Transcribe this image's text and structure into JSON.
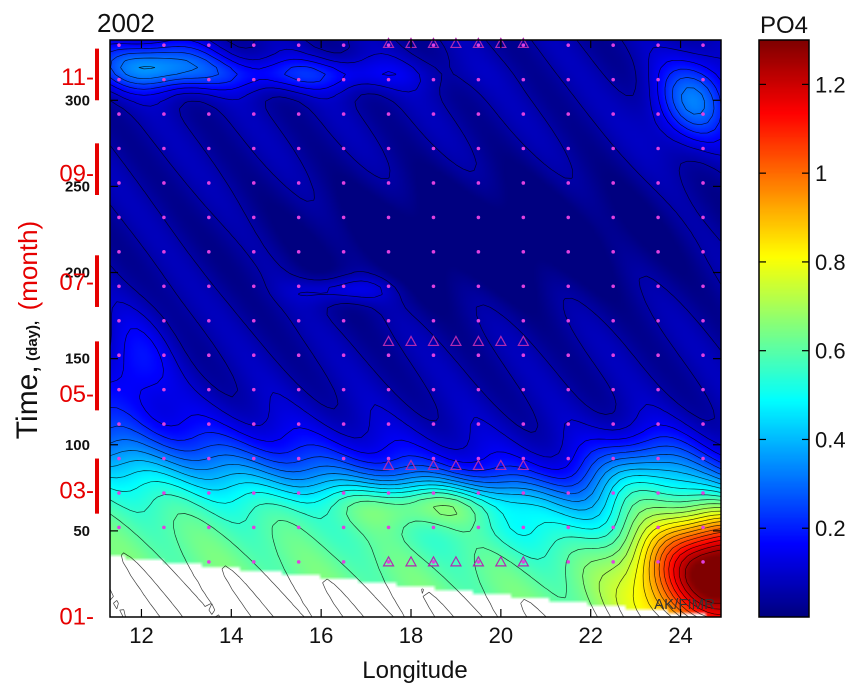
{
  "chart_data": {
    "type": "heatmap",
    "title": "2002",
    "xlabel": "Longitude",
    "ylabel_parts": {
      "main": "Time,",
      "sub": "(day),",
      "red": "(month)"
    },
    "xlim": [
      11.3,
      24.9
    ],
    "ylim": [
      0,
      335
    ],
    "x_ticks": [
      12,
      14,
      16,
      18,
      20,
      22,
      24
    ],
    "day_ticks": [
      50,
      100,
      150,
      200,
      250,
      300
    ],
    "month_ticks": [
      {
        "label": "01-",
        "day": 1
      },
      {
        "label": "03-",
        "day": 74
      },
      {
        "label": "05-",
        "day": 130
      },
      {
        "label": "07-",
        "day": 195
      },
      {
        "label": "09-",
        "day": 258
      },
      {
        "label": "11-",
        "day": 314
      }
    ],
    "month_bars": [
      [
        60,
        92
      ],
      [
        120,
        160
      ],
      [
        180,
        210
      ],
      [
        245,
        275
      ],
      [
        300,
        330
      ]
    ],
    "colorbar": {
      "label": "PO4",
      "min": 0.0,
      "max": 1.3,
      "ticks": [
        0.2,
        0.4,
        0.6,
        0.8,
        1,
        1.2
      ],
      "tick_labels": [
        "0.2",
        "0.4",
        "0.6",
        "0.8",
        "1",
        "1.2"
      ],
      "colormap": "jet"
    },
    "field_features": [
      {
        "x": 18.5,
        "y": 65,
        "value": 0.8,
        "note": "yellow maximum"
      },
      {
        "x": 24.5,
        "y": 30,
        "value": 1.25,
        "note": "red maximum east"
      },
      {
        "x": 19.0,
        "y": 220,
        "value": 0.05,
        "note": "summer minimum"
      },
      {
        "x": 12.2,
        "y": 320,
        "value": 0.4,
        "note": "late-year cyan"
      }
    ],
    "sample_x": [
      11.5,
      12.5,
      13.5,
      14.5,
      15.5,
      16.5,
      17.5,
      18.5,
      19.5,
      20.5,
      21.5,
      22.5,
      23.5,
      24.5
    ],
    "sample_days": [
      32,
      52,
      72,
      92,
      112,
      132,
      152,
      172,
      192,
      212,
      232,
      252,
      272,
      292,
      312,
      332
    ],
    "triangle_x": [
      17.5,
      18.0,
      18.5,
      19.0,
      19.5,
      20.0,
      20.5
    ],
    "triangle_days": [
      32,
      88,
      160,
      333
    ],
    "annotation": "AK/FIMR"
  }
}
